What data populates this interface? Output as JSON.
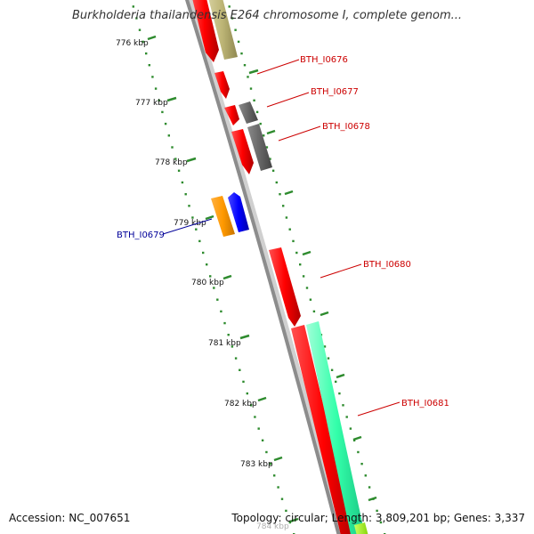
{
  "title": "Burkholderia thailandensis E264 chromosome I, complete genom...",
  "footer": {
    "accession_label": "Accession:",
    "accession": "NC_007651",
    "summary": "Topology: circular; Length: 3,809,201 bp; Genes: 3,337"
  },
  "colors": {
    "backbone": "#8c8c8c",
    "dots": "#2e8b2e",
    "forward_label": "#cc0000",
    "reverse_label": "#000099"
  },
  "ticks": [
    "776 kbp",
    "777 kbp",
    "778 kbp",
    "779 kbp",
    "780 kbp",
    "781 kbp",
    "782 kbp",
    "783 kbp",
    "784 kbp"
  ],
  "genes": [
    {
      "label": "BTH_I0676",
      "color": "#cc0000"
    },
    {
      "label": "BTH_I0677",
      "color": "#cc0000"
    },
    {
      "label": "BTH_I0678",
      "color": "#cc0000"
    },
    {
      "label": "BTH_I0679",
      "color": "#000099"
    },
    {
      "label": "BTH_I0680",
      "color": "#cc0000"
    },
    {
      "label": "BTH_I0681",
      "color": "#cc0000"
    }
  ]
}
